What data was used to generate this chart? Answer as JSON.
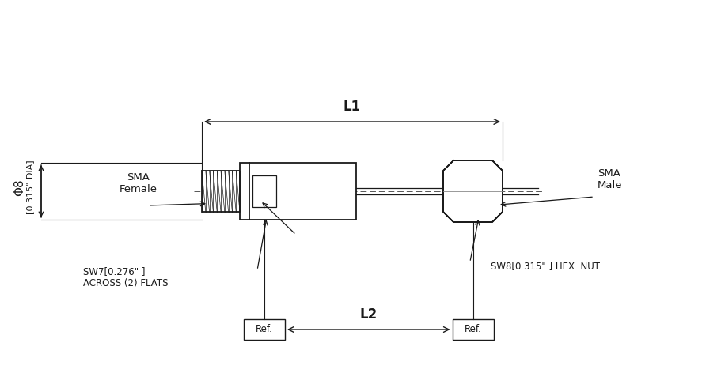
{
  "bg_color": "#ffffff",
  "line_color": "#1a1a1a",
  "text_color": "#1a1a1a",
  "phi_label_1": "Φ8",
  "phi_label_2": "[0.315\" DIA]",
  "L1_label": "L1",
  "L2_label": "L2",
  "sw7_label": "SW7[0.276\" ]\nACROSS (2) FLATS",
  "sw8_label": "SW8[0.315\" ] HEX. NUT",
  "sma_female_label": "SMA\nFemale",
  "sma_male_label": "SMA\nMale",
  "ref_label": "Ref.",
  "figsize": [
    9.12,
    4.72
  ],
  "dpi": 100,
  "xlim": [
    0,
    9.12
  ],
  "ylim": [
    0,
    4.72
  ]
}
